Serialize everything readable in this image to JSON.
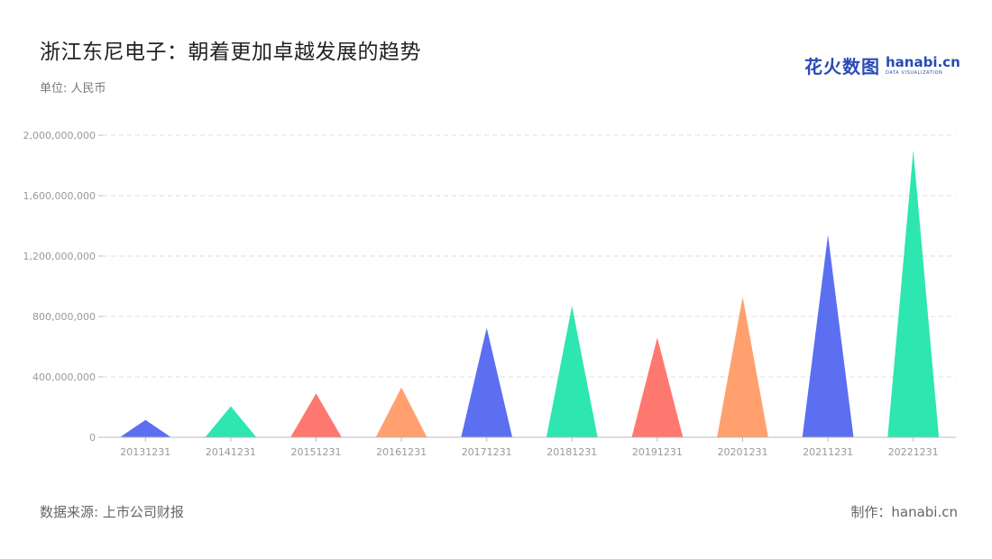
{
  "header": {
    "title": "浙江东尼电子：朝着更加卓越发展的趋势",
    "unit": "单位: 人民币"
  },
  "logo": {
    "cn": "花火数图",
    "en": "hanabi.cn",
    "sub": "DATA VISUALIZATION"
  },
  "footer": {
    "source": "数据来源: 上市公司财报",
    "maker": "制作：hanabi.cn"
  },
  "chart_data": {
    "type": "bar",
    "categories": [
      "20131231",
      "20141231",
      "20151231",
      "20161231",
      "20171231",
      "20181231",
      "20191231",
      "20201231",
      "20211231",
      "20221231"
    ],
    "values": [
      115000000,
      205000000,
      290000000,
      330000000,
      725000000,
      870000000,
      660000000,
      930000000,
      1340000000,
      1900000000
    ],
    "colors": [
      "#5b6ff0",
      "#2de6b0",
      "#ff7870",
      "#ffa06e",
      "#5b6ff0",
      "#2de6b0",
      "#ff7870",
      "#ffa06e",
      "#5b6ff0",
      "#2de6b0"
    ],
    "ylim": [
      0,
      2000000000
    ],
    "yticks": [
      0,
      400000000,
      800000000,
      1200000000,
      1600000000,
      2000000000
    ],
    "ytick_labels": [
      "0",
      "400,000,000",
      "800,000,000",
      "1,200,000,000",
      "1,600,000,000",
      "2,000,000,000"
    ],
    "bar_shape": "triangle",
    "grid": true
  }
}
